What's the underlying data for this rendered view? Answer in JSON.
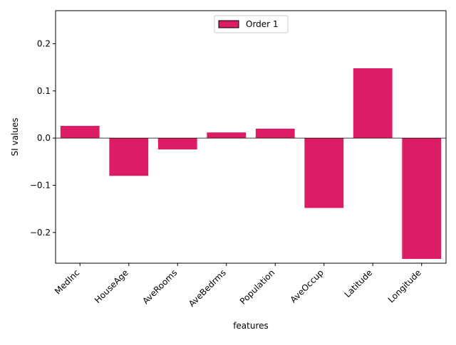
{
  "chart_data": {
    "type": "bar",
    "xlabel": "features",
    "ylabel": "SI values",
    "categories": [
      "MedInc",
      "HouseAge",
      "AveRooms",
      "AveBedrms",
      "Population",
      "AveOccup",
      "Latitude",
      "Longitude"
    ],
    "series": [
      {
        "name": "Order 1",
        "color": "#dc1c64",
        "values": [
          0.026,
          -0.08,
          -0.024,
          0.012,
          0.02,
          -0.148,
          0.148,
          -0.256
        ]
      }
    ],
    "ylim": [
      -0.265,
      0.27
    ],
    "yticks": [
      -0.2,
      -0.1,
      0.0,
      0.1,
      0.2
    ],
    "ytick_labels": [
      "−0.2",
      "−0.1",
      "0.0",
      "0.1",
      "0.2"
    ],
    "legend_position": "top-center",
    "grid": false,
    "zero_line": true
  }
}
